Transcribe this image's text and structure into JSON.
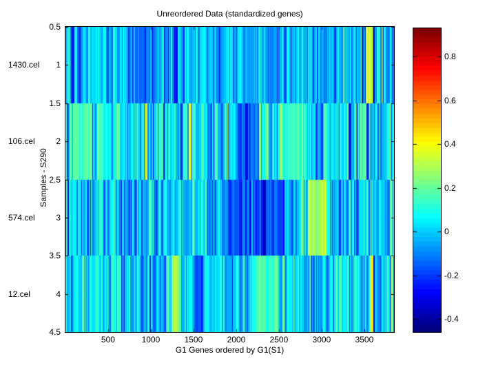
{
  "figure": {
    "background": "#ffffff",
    "axis_color": "#000000",
    "font_color": "#000000"
  },
  "chart_data": {
    "type": "heatmap",
    "title": "Unreordered Data (standardized genes)",
    "xlabel": "G1 Genes ordered by G1(S1)",
    "ylabel": "Samples - S290",
    "x_range": [
      0.5,
      3847.5
    ],
    "y_range": [
      0.5,
      4.5
    ],
    "x_ticks": [
      500,
      1000,
      1500,
      2000,
      2500,
      3000,
      3500
    ],
    "y_ticks": [
      0.5,
      1,
      1.5,
      2,
      2.5,
      3,
      3.5,
      4,
      4.5
    ],
    "n_genes": 3847,
    "grid": false,
    "colormap": "jet",
    "color_range": [
      -0.46,
      0.93
    ],
    "colorbar": {
      "position": "right",
      "ticks": [
        0.8,
        0.6,
        0.4,
        0.2,
        0,
        -0.2,
        -0.4
      ],
      "segments": 64
    },
    "rows": [
      {
        "label": "1430.cel",
        "y_center": 1,
        "y_span": [
          0.5,
          1.5
        ],
        "mean": -0.03,
        "std": 0.1,
        "p_high": 0.004,
        "p_low": 0.055,
        "seed": 7,
        "features": [
          {
            "from": 3520,
            "to": 3600,
            "value": 0.33
          },
          {
            "from": 700,
            "to": 980,
            "value": -0.12
          }
        ]
      },
      {
        "label": "106.cel",
        "y_center": 2,
        "y_span": [
          1.5,
          2.5
        ],
        "mean": 0.04,
        "std": 0.13,
        "p_high": 0.012,
        "p_low": 0.055,
        "seed": 13,
        "features": [
          {
            "from": 80,
            "to": 300,
            "value": 0.16
          },
          {
            "from": 250,
            "to": 268,
            "value": 0.55
          },
          {
            "from": 1440,
            "to": 1462,
            "value": 0.5
          },
          {
            "from": 1980,
            "to": 2260,
            "value": -0.17
          },
          {
            "from": 2580,
            "to": 2820,
            "value": 0.15
          }
        ]
      },
      {
        "label": "574.cel",
        "y_center": 3,
        "y_span": [
          2.5,
          3.5
        ],
        "mean": 0.0,
        "std": 0.11,
        "p_high": 0.008,
        "p_low": 0.06,
        "seed": 29,
        "features": [
          {
            "from": 1830,
            "to": 2560,
            "value": -0.18
          },
          {
            "from": 2840,
            "to": 3060,
            "value": 0.27
          }
        ]
      },
      {
        "label": "12.cel",
        "y_center": 4,
        "y_span": [
          3.5,
          4.5
        ],
        "mean": 0.01,
        "std": 0.11,
        "p_high": 0.01,
        "p_low": 0.05,
        "seed": 41,
        "features": [
          {
            "from": 1240,
            "to": 1350,
            "value": 0.3
          },
          {
            "from": 1500,
            "to": 1600,
            "value": -0.2
          },
          {
            "from": 2180,
            "to": 2440,
            "value": 0.13
          },
          {
            "from": 3460,
            "to": 3474,
            "value": 0.85
          },
          {
            "from": 3560,
            "to": 3590,
            "value": 0.4
          }
        ]
      }
    ]
  }
}
